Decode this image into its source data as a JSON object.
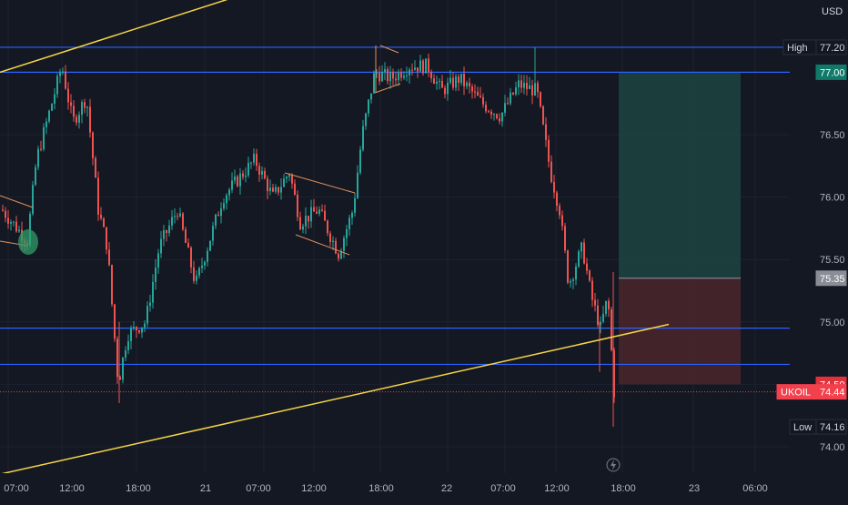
{
  "currency": "USD",
  "price_axis": {
    "ticks": [
      "76.50",
      "76.00",
      "75.50",
      "75.00",
      "74.00"
    ],
    "tags": [
      {
        "label": "High",
        "value": "77.20",
        "bg": "#131722",
        "fg": "#d1d4dc",
        "border": "#2a2e39"
      },
      {
        "label": "",
        "value": "77.00",
        "bg": "#0f7a6a",
        "fg": "#ffffff",
        "border": "#0f7a6a"
      },
      {
        "label": "",
        "value": "75.35",
        "bg": "#8a8d96",
        "fg": "#ffffff",
        "border": "#8a8d96"
      },
      {
        "label": "",
        "value": "74.50",
        "bg": "#e0323b",
        "fg": "#ffffff",
        "border": "#e0323b"
      },
      {
        "label": "UKOIL",
        "value": "74.44",
        "bg": "#f2404c",
        "fg": "#ffffff",
        "border": "#f2404c"
      },
      {
        "label": "Low",
        "value": "74.16",
        "bg": "#131722",
        "fg": "#d1d4dc",
        "border": "#2a2e39"
      }
    ]
  },
  "time_axis": {
    "ticks": [
      "07:00",
      "12:00",
      "18:00",
      "21",
      "07:00",
      "12:00",
      "18:00",
      "22",
      "07:00",
      "12:00",
      "18:00",
      "23",
      "06:00"
    ]
  },
  "chart_data": {
    "type": "candlestick",
    "symbol": "UKOIL",
    "last_price": 74.44,
    "session_high": 77.2,
    "session_low": 74.16,
    "horizontal_levels": [
      77.2,
      77.0,
      74.95,
      74.66
    ],
    "trendlines": [
      {
        "name": "upper-trendline",
        "from": [
          0,
          77.0
        ],
        "to": [
          407,
          77.95
        ]
      },
      {
        "name": "lower-trendline",
        "from": [
          0,
          73.78
        ],
        "to": [
          735,
          74.98
        ]
      }
    ],
    "position": {
      "entry": 75.35,
      "target": 77.0,
      "stop": 74.5
    },
    "colors": {
      "up": "#26a69a",
      "down": "#ef5350",
      "level": "#2962ff",
      "trendline": "#f5d547",
      "background": "#141823"
    }
  }
}
